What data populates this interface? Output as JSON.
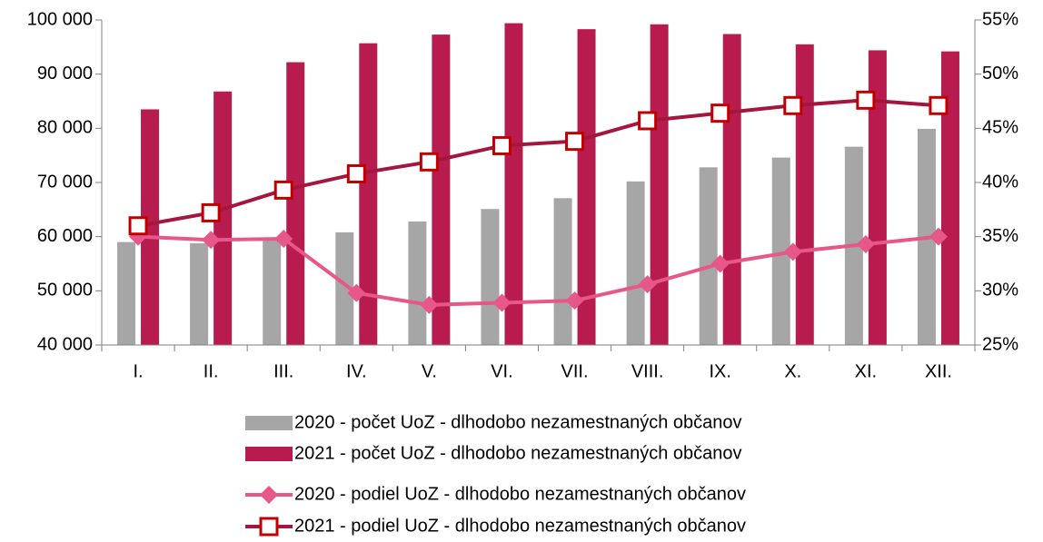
{
  "chart_data": {
    "type": "bar",
    "categories": [
      "I.",
      "II.",
      "III.",
      "IV.",
      "V.",
      "VI.",
      "VII.",
      "VIII.",
      "IX.",
      "X.",
      "XI.",
      "XII."
    ],
    "series": [
      {
        "name": "2020 - počet UoZ - dlhodobo nezamestnaných občanov",
        "type": "bar",
        "color": "#a6a6a6",
        "values": [
          59000,
          58800,
          59800,
          60800,
          62800,
          65100,
          67100,
          70200,
          72800,
          74600,
          76600,
          79900
        ]
      },
      {
        "name": "2021 - počet UoZ - dlhodobo nezamestnaných občanov",
        "type": "bar",
        "color": "#b81c4f",
        "values": [
          83500,
          86800,
          92200,
          95700,
          97300,
          99400,
          98300,
          99200,
          97400,
          95500,
          94400,
          94200
        ]
      },
      {
        "name": "2020 - podiel UoZ - dlhodobo nezamestnaných občanov",
        "type": "line",
        "axis": "y2",
        "color": "#e8578a",
        "marker": "diamond",
        "values": [
          35.0,
          34.7,
          34.8,
          29.8,
          28.7,
          28.9,
          29.1,
          30.6,
          32.5,
          33.6,
          34.3,
          35.0
        ]
      },
      {
        "name": "2021 - podiel UoZ - dlhodobo nezamestnaných občanov",
        "type": "line",
        "axis": "y2",
        "color": "#a5163f",
        "marker": "square",
        "values": [
          36.0,
          37.2,
          39.3,
          40.8,
          41.9,
          43.4,
          43.8,
          45.7,
          46.4,
          47.1,
          47.6,
          47.1
        ]
      }
    ],
    "ylim": [
      40000,
      100000
    ],
    "yticks": [
      {
        "value": 40000,
        "label": "40 000"
      },
      {
        "value": 50000,
        "label": "50 000"
      },
      {
        "value": 60000,
        "label": "60 000"
      },
      {
        "value": 70000,
        "label": "70 000"
      },
      {
        "value": 80000,
        "label": "80 000"
      },
      {
        "value": 90000,
        "label": "90 000"
      },
      {
        "value": 100000,
        "label": "100 000"
      }
    ],
    "y2lim": [
      25,
      55
    ],
    "y2ticks": [
      {
        "value": 25,
        "label": "25%"
      },
      {
        "value": 30,
        "label": "30%"
      },
      {
        "value": 35,
        "label": "35%"
      },
      {
        "value": 40,
        "label": "40%"
      },
      {
        "value": 45,
        "label": "45%"
      },
      {
        "value": 50,
        "label": "50%"
      },
      {
        "value": 55,
        "label": "55%"
      }
    ],
    "legend": "bottom"
  }
}
